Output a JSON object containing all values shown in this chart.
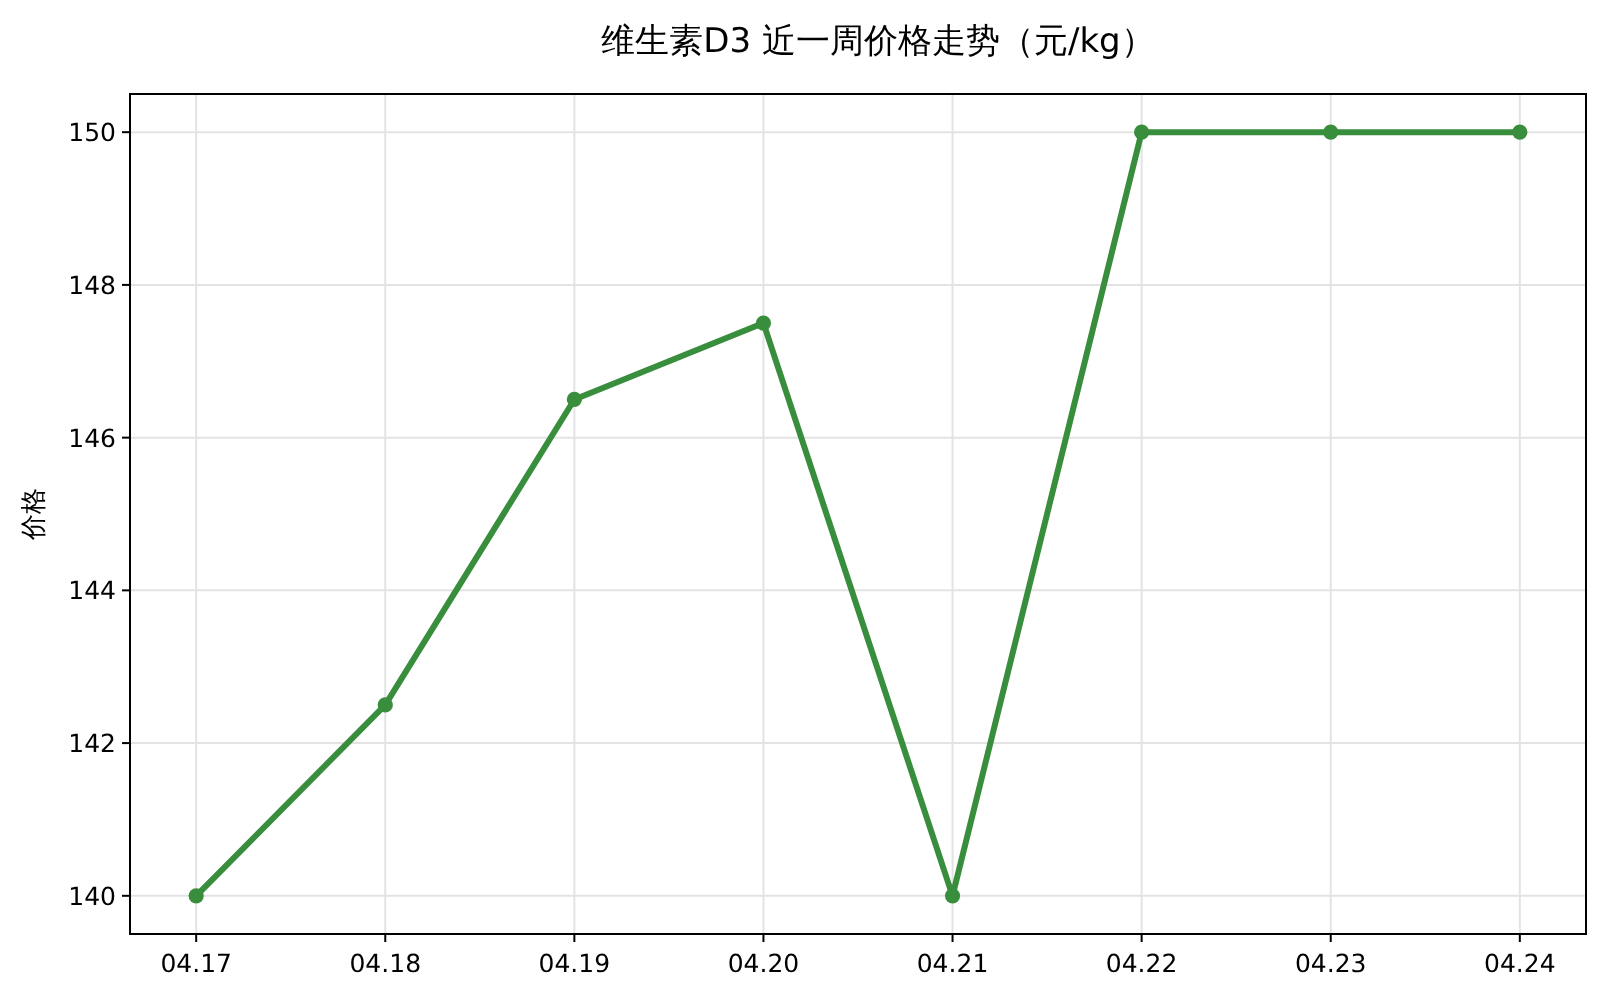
{
  "chart_data": {
    "type": "line",
    "title": "维生素D3 近一周价格走势（元/kg）",
    "ylabel": "价格",
    "categories": [
      "04.17",
      "04.18",
      "04.19",
      "04.20",
      "04.21",
      "04.22",
      "04.23",
      "04.24"
    ],
    "series": [
      {
        "color": "#388e3c",
        "values": [
          140,
          142.5,
          146.5,
          147.5,
          140,
          150,
          150,
          150
        ]
      }
    ],
    "ylim": [
      139.5,
      150.5
    ],
    "yticks": [
      140,
      142,
      144,
      146,
      148,
      150
    ],
    "grid": true,
    "marker": "circle",
    "line_style": "solid"
  }
}
